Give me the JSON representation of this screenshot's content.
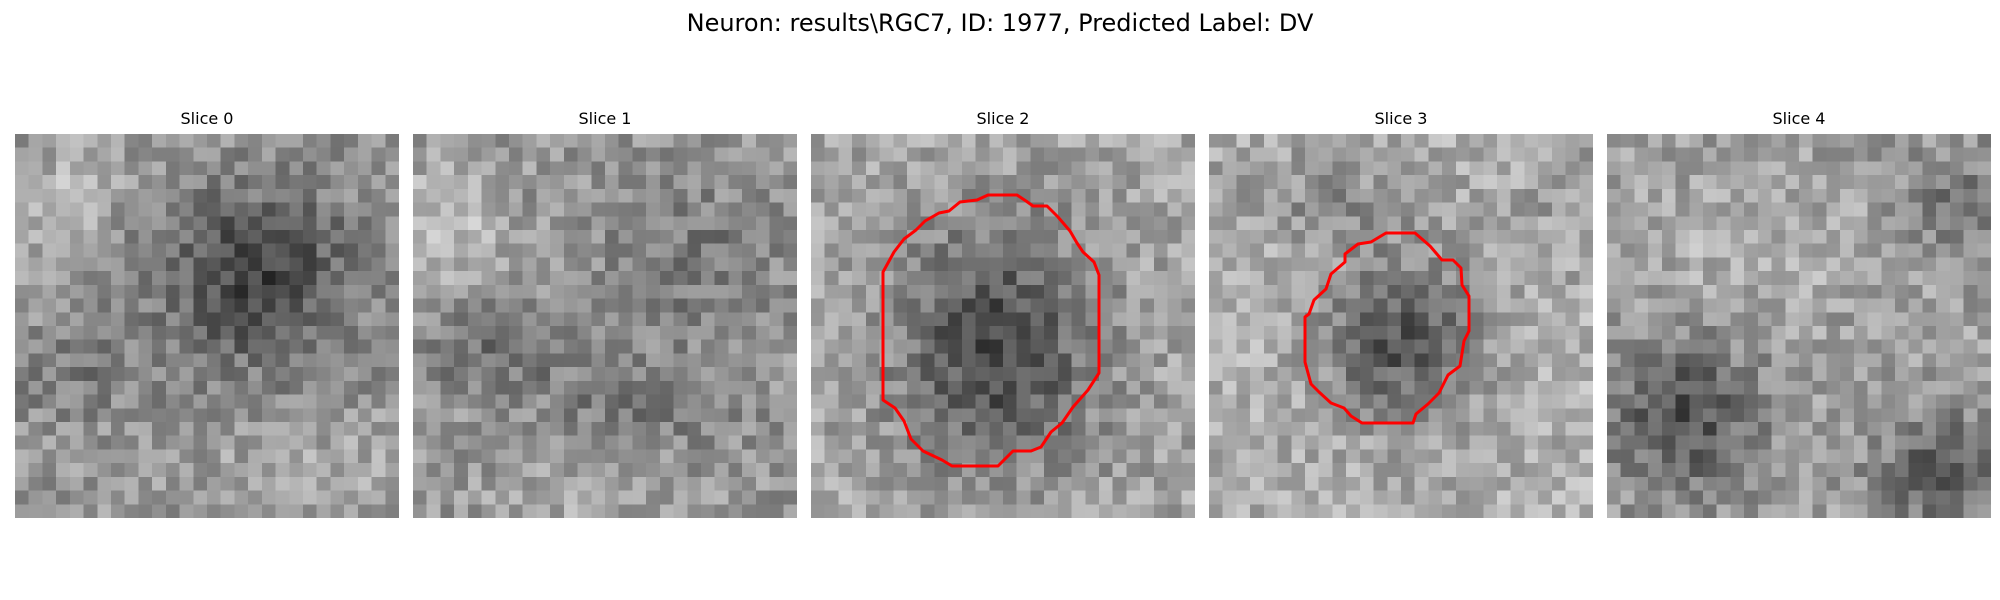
{
  "figure": {
    "title": "Neuron: results\\RGC7, ID: 1977, Predicted Label: DV"
  },
  "slices": [
    {
      "title": "Slice 0",
      "has_outline": false
    },
    {
      "title": "Slice 1",
      "has_outline": false
    },
    {
      "title": "Slice 2",
      "has_outline": true
    },
    {
      "title": "Slice 3",
      "has_outline": true
    },
    {
      "title": "Slice 4",
      "has_outline": false
    }
  ],
  "colors": {
    "outline": "#ff0000",
    "background": "#ffffff"
  }
}
